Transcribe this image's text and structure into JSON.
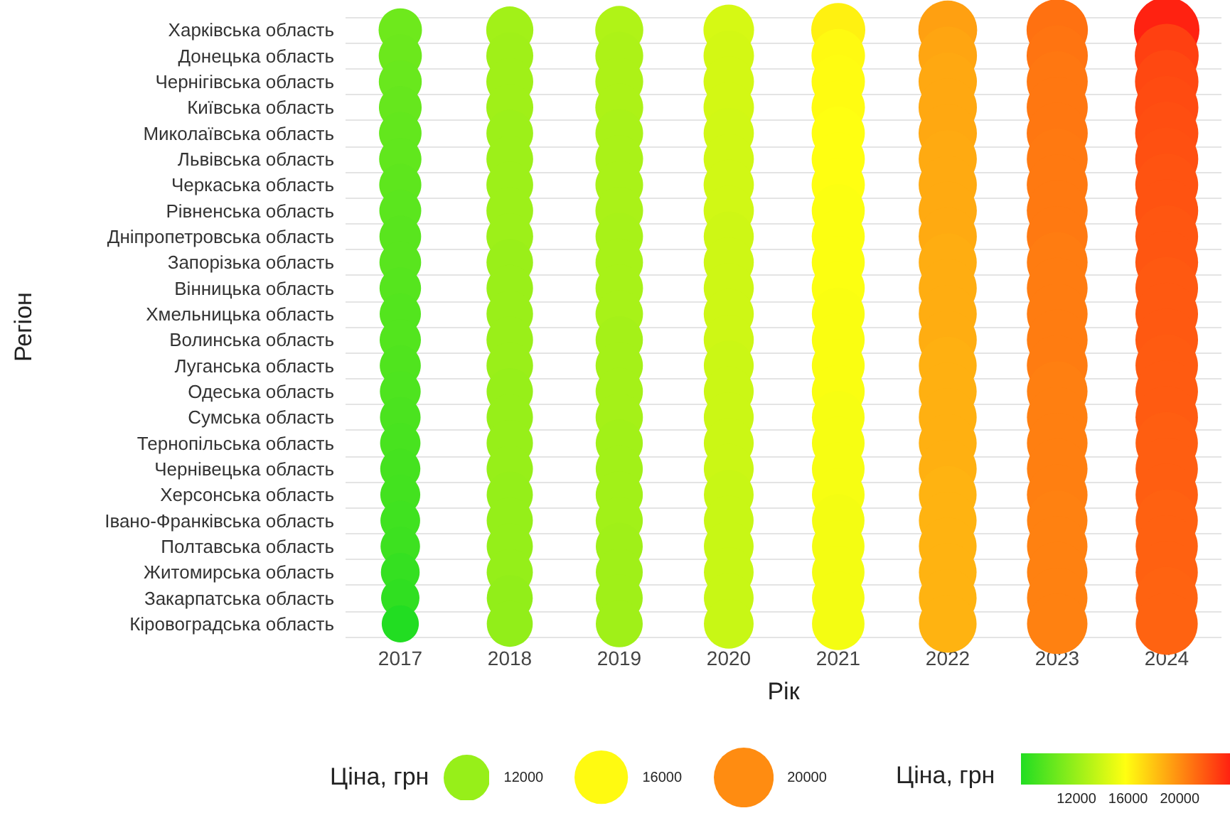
{
  "chart_data": {
    "type": "bubble",
    "orientation": "horizontal",
    "xlabel": "Рік",
    "ylabel": "Регіон",
    "legend_title": "Ціна, грн",
    "clabel": "Ціна, грн",
    "categories": [
      "Харківська область",
      "Донецька область",
      "Чернігівська область",
      "Київська область",
      "Миколаївська область",
      "Львівська область",
      "Черкаська область",
      "Рівненська область",
      "Дніпропетровська область",
      "Запорізька область",
      "Вінницька область",
      "Хмельницька область",
      "Волинська область",
      "Луганська область",
      "Одеська область",
      "Сумська область",
      "Тернопільська область",
      "Чернівецька область",
      "Херсонська область",
      "Івано-Франківська область",
      "Полтавська область",
      "Житомирська область",
      "Закарпатська область",
      "Кіровоградська область"
    ],
    "xlim": [
      2016.5,
      2024.5
    ],
    "xticks": [
      2017,
      2018,
      2019,
      2020,
      2021,
      2022,
      2023,
      2024
    ],
    "series": [
      {
        "values": [
          2017,
          2017,
          2017,
          2017,
          2017,
          2017,
          2017,
          2017,
          2017,
          2017,
          2017,
          2017,
          2017,
          2017,
          2017,
          2017,
          2017,
          2017,
          2017,
          2017,
          2017,
          2017,
          2017,
          2017
        ],
        "sizes": [
          10500,
          10400,
          10300,
          10200,
          10100,
          10000,
          9900,
          9800,
          9700,
          9700,
          9600,
          9500,
          9500,
          9400,
          9300,
          9200,
          9100,
          9000,
          8900,
          8800,
          8700,
          8400,
          8200,
          7700
        ],
        "colors": [
          "#6ee91c",
          "#6ce81c",
          "#69e81d",
          "#66e71d",
          "#63e71d",
          "#61e71d",
          "#5ee61d",
          "#5be61e",
          "#59e51e",
          "#59e51e",
          "#56e51e",
          "#53e51e",
          "#53e51e",
          "#50e41e",
          "#4ee41f",
          "#4be31f",
          "#48e31f",
          "#45e21f",
          "#43e21f",
          "#40e220",
          "#3de120",
          "#35e021",
          "#30df21",
          "#22dd22"
        ]
      },
      {
        "values": [
          2018,
          2018,
          2018,
          2018,
          2018,
          2018,
          2018,
          2018,
          2018,
          2018,
          2018,
          2018,
          2018,
          2018,
          2018,
          2018,
          2018,
          2018,
          2018,
          2018,
          2018,
          2018,
          2018,
          2018
        ],
        "sizes": [
          12400,
          12300,
          12300,
          12300,
          12200,
          12200,
          12200,
          12200,
          12200,
          12100,
          12100,
          12100,
          12100,
          12100,
          12000,
          12000,
          12000,
          12000,
          11900,
          11900,
          11900,
          11900,
          11800,
          11800
        ],
        "colors": [
          "#a2f118",
          "#a0f018",
          "#a0f018",
          "#a0f018",
          "#9df019",
          "#9df019",
          "#9df019",
          "#9df019",
          "#9df019",
          "#9aef19",
          "#9aef19",
          "#9aef19",
          "#9aef19",
          "#9aef19",
          "#97ef19",
          "#97ef19",
          "#97ef19",
          "#97ef19",
          "#95ef19",
          "#95ef19",
          "#95ef19",
          "#95ef19",
          "#92ee19",
          "#92ee19"
        ]
      },
      {
        "values": [
          2019,
          2019,
          2019,
          2019,
          2019,
          2019,
          2019,
          2019,
          2019,
          2019,
          2019,
          2019,
          2019,
          2019,
          2019,
          2019,
          2019,
          2019,
          2019,
          2019,
          2019,
          2019,
          2019,
          2019
        ],
        "sizes": [
          12900,
          12800,
          12800,
          12800,
          12700,
          12700,
          12700,
          12700,
          12600,
          12600,
          12600,
          12600,
          12500,
          12500,
          12500,
          12500,
          12400,
          12400,
          12400,
          12400,
          12300,
          12300,
          12300,
          12300
        ],
        "colors": [
          "#b0f317",
          "#adf217",
          "#adf217",
          "#adf217",
          "#aaf218",
          "#aaf218",
          "#aaf218",
          "#aaf218",
          "#a8f218",
          "#a8f218",
          "#a8f218",
          "#a8f218",
          "#a5f118",
          "#a5f118",
          "#a5f118",
          "#a5f118",
          "#a2f118",
          "#a2f118",
          "#a2f118",
          "#a2f118",
          "#a0f018",
          "#a0f018",
          "#a0f018",
          "#a0f018"
        ]
      },
      {
        "values": [
          2020,
          2020,
          2020,
          2020,
          2020,
          2020,
          2020,
          2020,
          2020,
          2020,
          2020,
          2020,
          2020,
          2020,
          2020,
          2020,
          2020,
          2020,
          2020,
          2020,
          2020,
          2020,
          2020,
          2020
        ],
        "sizes": [
          14300,
          14200,
          14200,
          14200,
          14100,
          14100,
          14100,
          14100,
          14000,
          14000,
          14000,
          14000,
          14000,
          13900,
          13900,
          13900,
          13900,
          13900,
          13800,
          13800,
          13800,
          13800,
          13800,
          13800
        ],
        "colors": [
          "#d6f914",
          "#d3f814",
          "#d3f814",
          "#d3f814",
          "#d1f815",
          "#d1f815",
          "#d1f815",
          "#d1f815",
          "#cef715",
          "#cef715",
          "#cef715",
          "#cef715",
          "#cef715",
          "#cbf715",
          "#cbf715",
          "#cbf715",
          "#cbf715",
          "#cbf715",
          "#c8f715",
          "#c8f715",
          "#c8f715",
          "#c8f715",
          "#c8f715",
          "#c8f715"
        ]
      },
      {
        "values": [
          2021,
          2021,
          2021,
          2021,
          2021,
          2021,
          2021,
          2021,
          2021,
          2021,
          2021,
          2021,
          2021,
          2021,
          2021,
          2021,
          2021,
          2021,
          2021,
          2021,
          2021,
          2021,
          2021,
          2021
        ],
        "sizes": [
          16300,
          16000,
          15900,
          15900,
          15800,
          15800,
          15800,
          15700,
          15700,
          15700,
          15700,
          15600,
          15600,
          15600,
          15600,
          15500,
          15500,
          15500,
          15500,
          15400,
          15400,
          15400,
          15400,
          15400
        ],
        "colors": [
          "#fff111",
          "#fffa11",
          "#fffc11",
          "#fffc11",
          "#ffff11",
          "#ffff11",
          "#ffff11",
          "#fcff11",
          "#fcff11",
          "#fcff11",
          "#fcff11",
          "#fafe11",
          "#fafe11",
          "#fafe11",
          "#fafe11",
          "#f7fe12",
          "#f7fe12",
          "#f7fe12",
          "#f7fe12",
          "#f4fd12",
          "#f4fd12",
          "#f4fd12",
          "#f4fd12",
          "#f4fd12"
        ]
      },
      {
        "values": [
          2022,
          2022,
          2022,
          2022,
          2022,
          2022,
          2022,
          2022,
          2022,
          2022,
          2022,
          2022,
          2022,
          2022,
          2022,
          2022,
          2022,
          2022,
          2022,
          2022,
          2022,
          2022,
          2022,
          2022
        ],
        "sizes": [
          19300,
          19100,
          19000,
          19000,
          19000,
          18900,
          18900,
          18900,
          18900,
          18800,
          18800,
          18800,
          18800,
          18700,
          18700,
          18700,
          18700,
          18700,
          18600,
          18600,
          18600,
          18600,
          18600,
          18600
        ],
        "colors": [
          "#ffa011",
          "#ffa511",
          "#ffa811",
          "#ffa811",
          "#ffa811",
          "#ffaa11",
          "#ffaa11",
          "#ffaa11",
          "#ffaa11",
          "#ffad11",
          "#ffad11",
          "#ffad11",
          "#ffad11",
          "#ffb011",
          "#ffb011",
          "#ffb011",
          "#ffb011",
          "#ffb011",
          "#ffb311",
          "#ffb311",
          "#ffb311",
          "#ffb311",
          "#ffb311",
          "#ffb311"
        ]
      },
      {
        "values": [
          2023,
          2023,
          2023,
          2023,
          2023,
          2023,
          2023,
          2023,
          2023,
          2023,
          2023,
          2023,
          2023,
          2023,
          2023,
          2023,
          2023,
          2023,
          2023,
          2023,
          2023,
          2023,
          2023,
          2023
        ],
        "sizes": [
          21000,
          20900,
          20800,
          20800,
          20800,
          20700,
          20700,
          20700,
          20700,
          20600,
          20600,
          20600,
          20600,
          20600,
          20500,
          20500,
          20500,
          20500,
          20500,
          20400,
          20400,
          20400,
          20400,
          20400
        ],
        "colors": [
          "#ff7111",
          "#ff7411",
          "#ff7711",
          "#ff7711",
          "#ff7711",
          "#ff7911",
          "#ff7911",
          "#ff7911",
          "#ff7911",
          "#ff7c11",
          "#ff7c11",
          "#ff7c11",
          "#ff7c11",
          "#ff7c11",
          "#ff7f11",
          "#ff7f11",
          "#ff7f11",
          "#ff7f11",
          "#ff7f11",
          "#ff8111",
          "#ff8111",
          "#ff8111",
          "#ff8111",
          "#ff8111"
        ]
      },
      {
        "values": [
          2024,
          2024,
          2024,
          2024,
          2024,
          2024,
          2024,
          2024,
          2024,
          2024,
          2024,
          2024,
          2024,
          2024,
          2024,
          2024,
          2024,
          2024,
          2024,
          2024,
          2024,
          2024,
          2024,
          2024
        ],
        "sizes": [
          23900,
          22800,
          22500,
          22400,
          22300,
          22200,
          22100,
          22100,
          22000,
          22000,
          21900,
          21900,
          21900,
          21800,
          21800,
          21800,
          21700,
          21700,
          21700,
          21600,
          21600,
          21600,
          21500,
          21500
        ],
        "colors": [
          "#ff2211",
          "#ff4011",
          "#ff4811",
          "#ff4b11",
          "#ff4e11",
          "#ff5011",
          "#ff5311",
          "#ff5311",
          "#ff5611",
          "#ff5611",
          "#ff5911",
          "#ff5911",
          "#ff5911",
          "#ff5b11",
          "#ff5b11",
          "#ff5b11",
          "#ff5e11",
          "#ff5e11",
          "#ff5e11",
          "#ff6111",
          "#ff6111",
          "#ff6111",
          "#ff6311",
          "#ff6311"
        ]
      }
    ],
    "clim": [
      7700,
      23900
    ],
    "cticks": [
      12000,
      16000,
      20000
    ],
    "size_legend": [
      12000,
      16000,
      20000
    ],
    "grid": true
  }
}
